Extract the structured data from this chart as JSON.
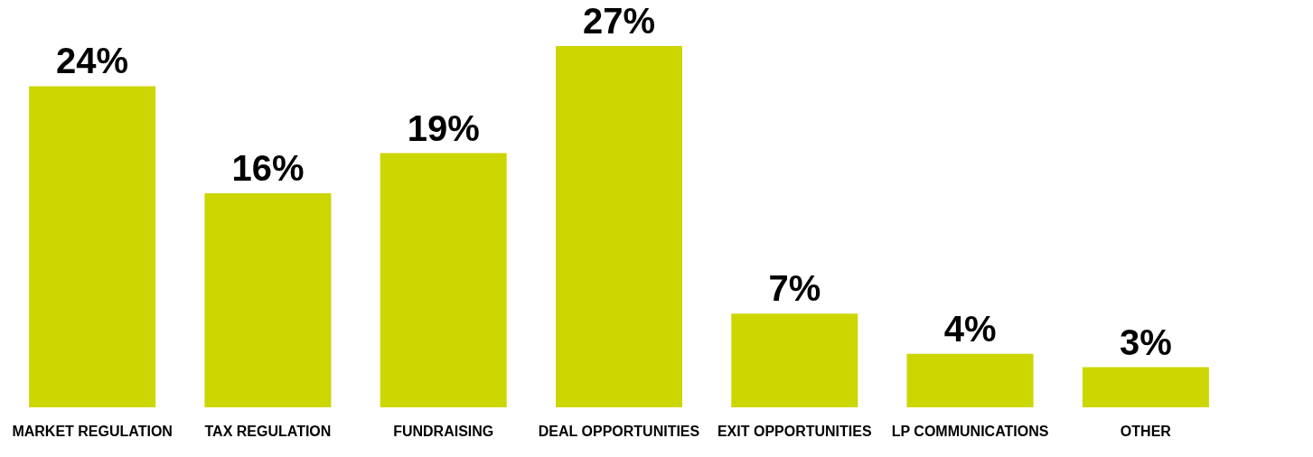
{
  "chart_data": {
    "type": "bar",
    "categories": [
      "MARKET REGULATION",
      "TAX REGULATION",
      "FUNDRAISING",
      "DEAL OPPORTUNITIES",
      "EXIT OPPORTUNITIES",
      "LP COMMUNICATIONS",
      "OTHER"
    ],
    "values": [
      24,
      16,
      19,
      27,
      7,
      4,
      3
    ],
    "value_labels": [
      "24%",
      "16%",
      "19%",
      "27%",
      "7%",
      "4%",
      "3%"
    ],
    "color": "#ccd600",
    "grid": false
  }
}
